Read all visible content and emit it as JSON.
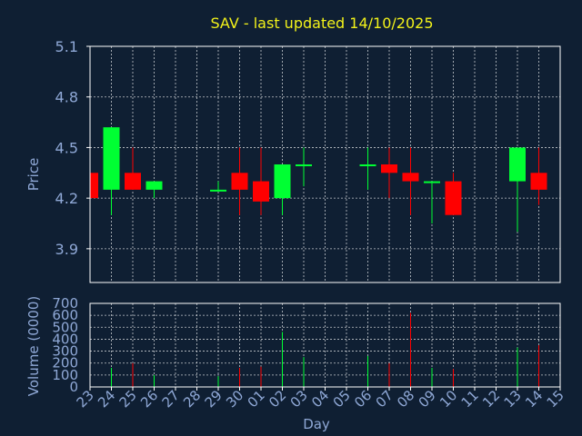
{
  "chart_data": {
    "type": "candlestick",
    "title": "SAV - last updated 14/10/2025",
    "xlabel": "Day",
    "ylabel": "Price",
    "volume_label": "Volume (0000)",
    "categories": [
      "23",
      "24",
      "25",
      "26",
      "27",
      "28",
      "29",
      "30",
      "01",
      "02",
      "03",
      "04",
      "05",
      "06",
      "07",
      "08",
      "09",
      "10",
      "11",
      "12",
      "13",
      "14",
      "15"
    ],
    "price_ylim": [
      3.7,
      5.1
    ],
    "price_ticks": [
      "5.1",
      "4.8",
      "4.5",
      "4.2",
      "3.9"
    ],
    "volume_ylim": [
      0,
      700
    ],
    "volume_ticks": [
      "700",
      "600",
      "500",
      "400",
      "300",
      "200",
      "100",
      "0"
    ],
    "grid": true,
    "colors": {
      "up": "#00ff33",
      "down": "#ff0000",
      "background": "#0f1f33",
      "title": "#f2f21a",
      "axis_text": "#8fa8d6"
    },
    "candles": [
      {
        "x": "23",
        "open": 4.35,
        "close": 4.2,
        "high": 4.35,
        "low": 4.2,
        "volume": 0
      },
      {
        "x": "24",
        "open": 4.25,
        "close": 4.62,
        "high": 4.62,
        "low": 4.1,
        "volume": 160
      },
      {
        "x": "25",
        "open": 4.35,
        "close": 4.25,
        "high": 4.5,
        "low": 4.25,
        "volume": 200
      },
      {
        "x": "26",
        "open": 4.25,
        "close": 4.3,
        "high": 4.3,
        "low": 4.2,
        "volume": 100
      },
      {
        "x": "29",
        "open": 4.24,
        "close": 4.25,
        "high": 4.3,
        "low": 4.24,
        "volume": 90
      },
      {
        "x": "30",
        "open": 4.35,
        "close": 4.25,
        "high": 4.5,
        "low": 4.1,
        "volume": 160
      },
      {
        "x": "01",
        "open": 4.3,
        "close": 4.18,
        "high": 4.5,
        "low": 4.1,
        "volume": 170
      },
      {
        "x": "02",
        "open": 4.2,
        "close": 4.4,
        "high": 4.4,
        "low": 4.1,
        "volume": 460
      },
      {
        "x": "03",
        "open": 4.39,
        "close": 4.4,
        "high": 4.5,
        "low": 4.27,
        "volume": 250
      },
      {
        "x": "06",
        "open": 4.39,
        "close": 4.4,
        "high": 4.5,
        "low": 4.25,
        "volume": 260
      },
      {
        "x": "07",
        "open": 4.4,
        "close": 4.35,
        "high": 4.5,
        "low": 4.2,
        "volume": 200
      },
      {
        "x": "08",
        "open": 4.35,
        "close": 4.3,
        "high": 4.5,
        "low": 4.1,
        "volume": 620
      },
      {
        "x": "09",
        "open": 4.29,
        "close": 4.3,
        "high": 4.3,
        "low": 4.05,
        "volume": 160
      },
      {
        "x": "10",
        "open": 4.3,
        "close": 4.1,
        "high": 4.35,
        "low": 4.1,
        "volume": 150
      },
      {
        "x": "13",
        "open": 4.3,
        "close": 4.5,
        "high": 4.5,
        "low": 4.0,
        "volume": 330
      },
      {
        "x": "14",
        "open": 4.35,
        "close": 4.25,
        "high": 4.5,
        "low": 4.16,
        "volume": 350
      }
    ]
  }
}
